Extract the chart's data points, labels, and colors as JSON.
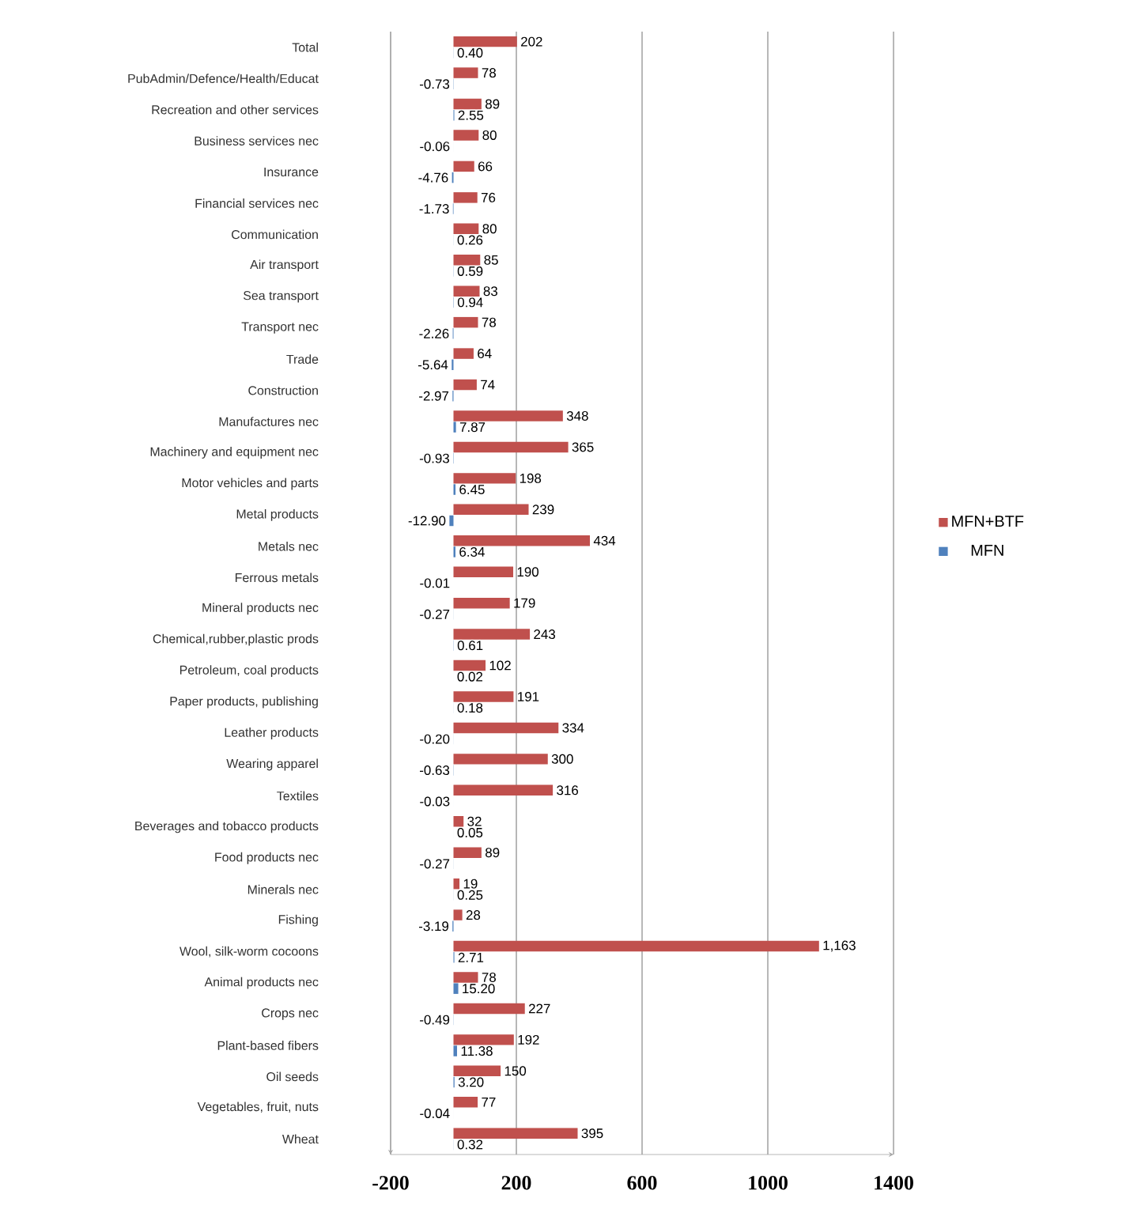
{
  "chart_data": {
    "type": "bar",
    "orientation": "horizontal",
    "categories": [
      "Total",
      "PubAdmin/Defence/Health/Educat",
      "Recreation and other services",
      "Business services nec",
      "Insurance",
      "Financial services nec",
      "Communication",
      "Air transport",
      "Sea transport",
      "Transport nec",
      "Trade",
      "Construction",
      "Manufactures nec",
      "Machinery and equipment nec",
      "Motor vehicles and parts",
      "Metal products",
      "Metals nec",
      "Ferrous metals",
      "Mineral products nec",
      "Chemical,rubber,plastic prods",
      "Petroleum, coal products",
      "Paper products, publishing",
      "Leather products",
      "Wearing apparel",
      "Textiles",
      "Beverages and tobacco products",
      "Food products nec",
      "Minerals nec",
      "Fishing",
      "Wool, silk-worm cocoons",
      "Animal products nec",
      "Crops nec",
      "Plant-based fibers",
      "Oil seeds",
      "Vegetables, fruit, nuts",
      "Wheat"
    ],
    "series": [
      {
        "name": "MFN+BTF",
        "color": "#c0504d",
        "values": [
          202,
          78,
          89,
          80,
          66,
          76,
          80,
          85,
          83,
          78,
          64,
          74,
          348,
          365,
          198,
          239,
          434,
          190,
          179,
          243,
          102,
          191,
          334,
          300,
          316,
          32,
          89,
          19,
          28,
          1163,
          78,
          227,
          192,
          150,
          77,
          395
        ],
        "value_labels": [
          "202",
          "78",
          "89",
          "80",
          "66",
          "76",
          "80",
          "85",
          "83",
          "78",
          "64",
          "74",
          "348",
          "365",
          "198",
          "239",
          "434",
          "190",
          "179",
          "243",
          "102",
          "191",
          "334",
          "300",
          "316",
          "32",
          "89",
          "19",
          "28",
          "1,163",
          "78",
          "227",
          "192",
          "150",
          "77",
          "395"
        ]
      },
      {
        "name": "MFN",
        "color": "#4f81bd",
        "values": [
          0.4,
          -0.73,
          2.55,
          -0.06,
          -4.76,
          -1.73,
          0.26,
          0.59,
          0.94,
          -2.26,
          -5.64,
          -2.97,
          7.87,
          -0.93,
          6.45,
          -12.9,
          6.34,
          -0.01,
          -0.27,
          0.61,
          0.02,
          0.18,
          -0.2,
          -0.63,
          -0.03,
          0.05,
          -0.27,
          0.25,
          -3.19,
          2.71,
          15.2,
          -0.49,
          11.38,
          3.2,
          -0.04,
          0.32
        ],
        "value_labels": [
          "0.40",
          "-0.73",
          "2.55",
          "-0.06",
          "-4.76",
          "-1.73",
          "0.26",
          "0.59",
          "0.94",
          "-2.26",
          "-5.64",
          "-2.97",
          "7.87",
          "-0.93",
          "6.45",
          "-12.90",
          "6.34",
          "-0.01",
          "-0.27",
          "0.61",
          "0.02",
          "0.18",
          "-0.20",
          "-0.63",
          "-0.03",
          "0.05",
          "-0.27",
          "0.25",
          "-3.19",
          "2.71",
          "15.20",
          "-0.49",
          "11.38",
          "3.20",
          "-0.04",
          "0.32"
        ]
      }
    ],
    "xlim": [
      -200,
      1400
    ],
    "xticks": [
      -200,
      200,
      600,
      1000,
      1400
    ],
    "grid": "x",
    "legend": "right"
  }
}
